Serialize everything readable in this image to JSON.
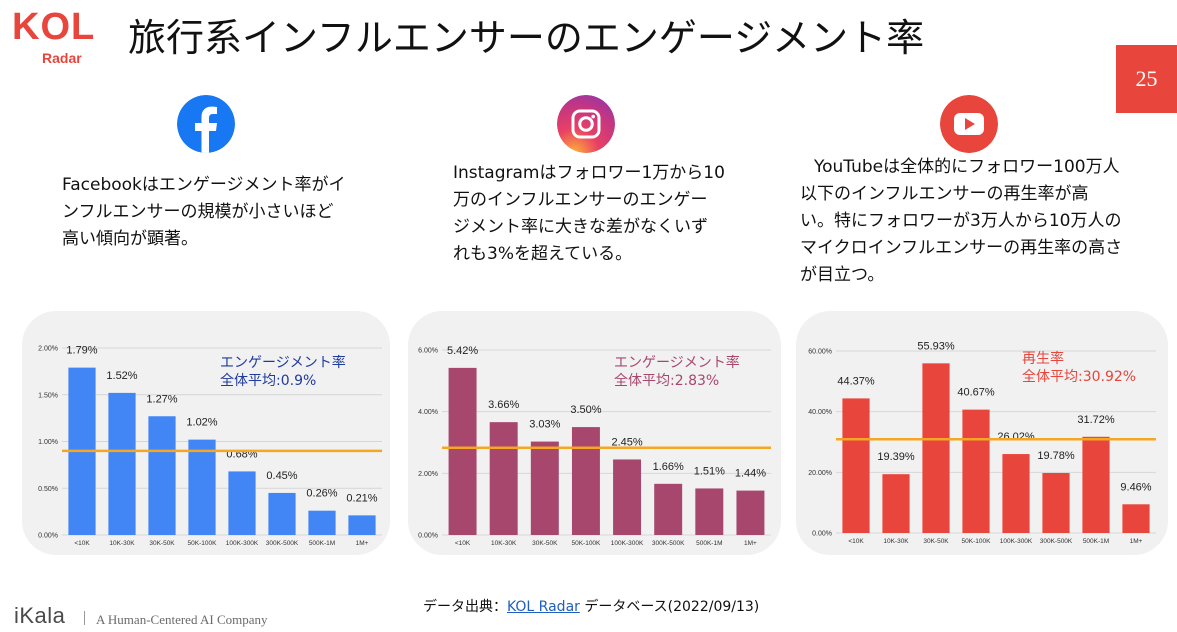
{
  "brand": {
    "logo_text": "KOL",
    "logo_sub": "Radar",
    "company": "iKala",
    "tagline": "A Human-Centered AI Company"
  },
  "slide": {
    "title": "旅行系インフルエンサーのエンゲージメント率",
    "page_number": "25"
  },
  "colors": {
    "accent": "#e8453c",
    "facebook": "#1877f2",
    "instagram": "#c13584",
    "youtube": "#e8453c",
    "avg_line": "#f5a623"
  },
  "sections": [
    {
      "platform": "Facebook",
      "icon": "facebook-icon",
      "lines": [
        "Facebookはエンゲージメント率がイ",
        "ンフルエンサーの規模が小さいほど",
        "高い傾向が顕著。"
      ]
    },
    {
      "platform": "Instagram",
      "icon": "instagram-icon",
      "lines": [
        "Instagramはフォロワー1万から10",
        "万のインフルエンサーのエンゲー",
        "ジメント率に大きな差がなくいず",
        "れも3%を超えている。"
      ]
    },
    {
      "platform": "YouTube",
      "icon": "youtube-icon",
      "lines": [
        "YouTubeは全体的にフォロワー100万人",
        "以下のインフルエンサーの再生率が高",
        "い。特にフォロワーが3万人から10万人の",
        "マイクロインフルエンサーの再生率の高さ",
        "が目立つ。"
      ]
    }
  ],
  "chart_data": [
    {
      "type": "bar",
      "categories": [
        "<10K",
        "10K-30K",
        "30K-50K",
        "50K-100K",
        "100K-300K",
        "300K-500K",
        "500K-1M",
        "1M+"
      ],
      "values": [
        1.79,
        1.52,
        1.27,
        1.02,
        0.68,
        0.45,
        0.26,
        0.21
      ],
      "value_labels": [
        "1.79%",
        "1.52%",
        "1.27%",
        "1.02%",
        "0.68%",
        "0.45%",
        "0.26%",
        "0.21%"
      ],
      "yticks": [
        "0.00%",
        "0.50%",
        "1.00%",
        "1.50%",
        "2.00%"
      ],
      "ylim": [
        0,
        2.0
      ],
      "average": 0.9,
      "annotation": [
        "エンゲージメント率",
        "全体平均:0.9%"
      ],
      "bar_color": "#4285f4",
      "annotation_color": "#1f3a9c",
      "grid": true
    },
    {
      "type": "bar",
      "categories": [
        "<10K",
        "10K-30K",
        "30K-50K",
        "50K-100K",
        "100K-300K",
        "300K-500K",
        "500K-1M",
        "1M+"
      ],
      "values": [
        5.42,
        3.66,
        3.03,
        3.5,
        2.45,
        1.66,
        1.51,
        1.44
      ],
      "value_labels": [
        "5.42%",
        "3.66%",
        "3.03%",
        "3.50%",
        "2.45%",
        "1.66%",
        "1.51%",
        "1.44%"
      ],
      "yticks": [
        "0.00%",
        "2.00%",
        "4.00%",
        "6.00%"
      ],
      "ylim": [
        0,
        6.0
      ],
      "average": 2.83,
      "annotation": [
        "エンゲージメント率",
        "全体平均:2.83%"
      ],
      "bar_color": "#a8476e",
      "annotation_color": "#a8476e",
      "grid": true
    },
    {
      "type": "bar",
      "categories": [
        "<10K",
        "10K-30K",
        "30K-50K",
        "50K-100K",
        "100K-300K",
        "300K-500K",
        "500K-1M",
        "1M+"
      ],
      "values": [
        44.37,
        19.39,
        55.93,
        40.67,
        26.02,
        19.78,
        31.72,
        9.46
      ],
      "value_labels": [
        "44.37%",
        "19.39%",
        "55.93%",
        "40.67%",
        "26.02%",
        "19.78%",
        "31.72%",
        "9.46%"
      ],
      "yticks": [
        "0.00%",
        "20.00%",
        "40.00%",
        "60.00%"
      ],
      "ylim": [
        0,
        60.0
      ],
      "average": 30.92,
      "annotation": [
        "再生率",
        "全体平均:30.92%"
      ],
      "bar_color": "#e8453c",
      "annotation_color": "#e8453c",
      "grid": true
    }
  ],
  "footer": {
    "source_prefix": "データ出典：",
    "source_link": "KOL Radar",
    "source_suffix": " データベース(2022/09/13)"
  }
}
